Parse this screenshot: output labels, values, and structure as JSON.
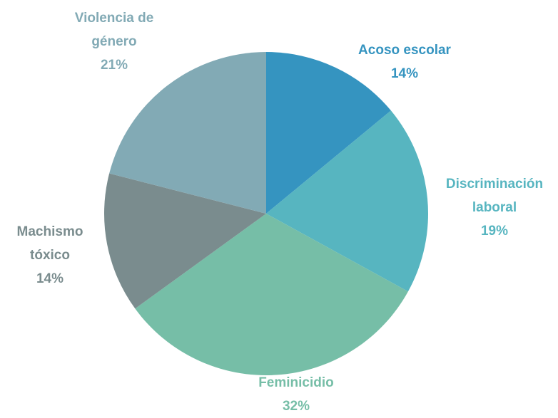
{
  "chart_data": {
    "type": "pie",
    "categories": [
      "Acoso escolar",
      "Discriminación laboral",
      "Feminicidio",
      "Machismo tóxico",
      "Violencia de género"
    ],
    "values": [
      14,
      19,
      32,
      14,
      21
    ],
    "value_labels": [
      "14%",
      "19%",
      "32%",
      "14%",
      "21%"
    ],
    "colors": [
      "#3594c0",
      "#57b5c0",
      "#76bea7",
      "#7a8c8e",
      "#82aab5"
    ]
  }
}
